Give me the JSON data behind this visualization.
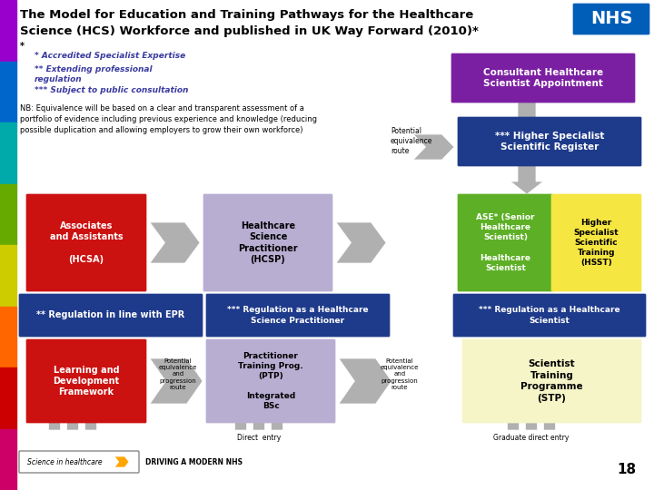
{
  "title_line1": "The Model for Education and Training Pathways for the Healthcare",
  "title_line2": "Science (HCS) Workforce and published in UK Way Forward (2010)*",
  "title_star": "*",
  "bg_color": "#ffffff",
  "left_strip_colors": [
    "#9900cc",
    "#0066cc",
    "#00aaaa",
    "#66aa00",
    "#cccc00",
    "#ff6600",
    "#cc0000",
    "#cc0066"
  ],
  "note1": "* Accredited Specialist Expertise",
  "note2": "** Extending professional\nregulation",
  "note3": "*** Subject to public consultation",
  "nb_text": "NB: Equivalence will be based on a clear and transparent assessment of a\nportfolio of evidence including previous experience and knowledge (reducing\npossible duplication and allowing employers to grow their own workforce)",
  "footer_text": "DRIVING A MODERN NHS",
  "page_num": "18",
  "color_red": "#cc1111",
  "color_blue_dark": "#1e3a8a",
  "color_purple": "#7b1fa2",
  "color_lavender": "#b8aed2",
  "color_green": "#5db025",
  "color_yellow": "#f5e642",
  "color_cream": "#f5f5c8",
  "color_gray_arrow": "#b0b0b0",
  "color_note": "#3a3aa0"
}
